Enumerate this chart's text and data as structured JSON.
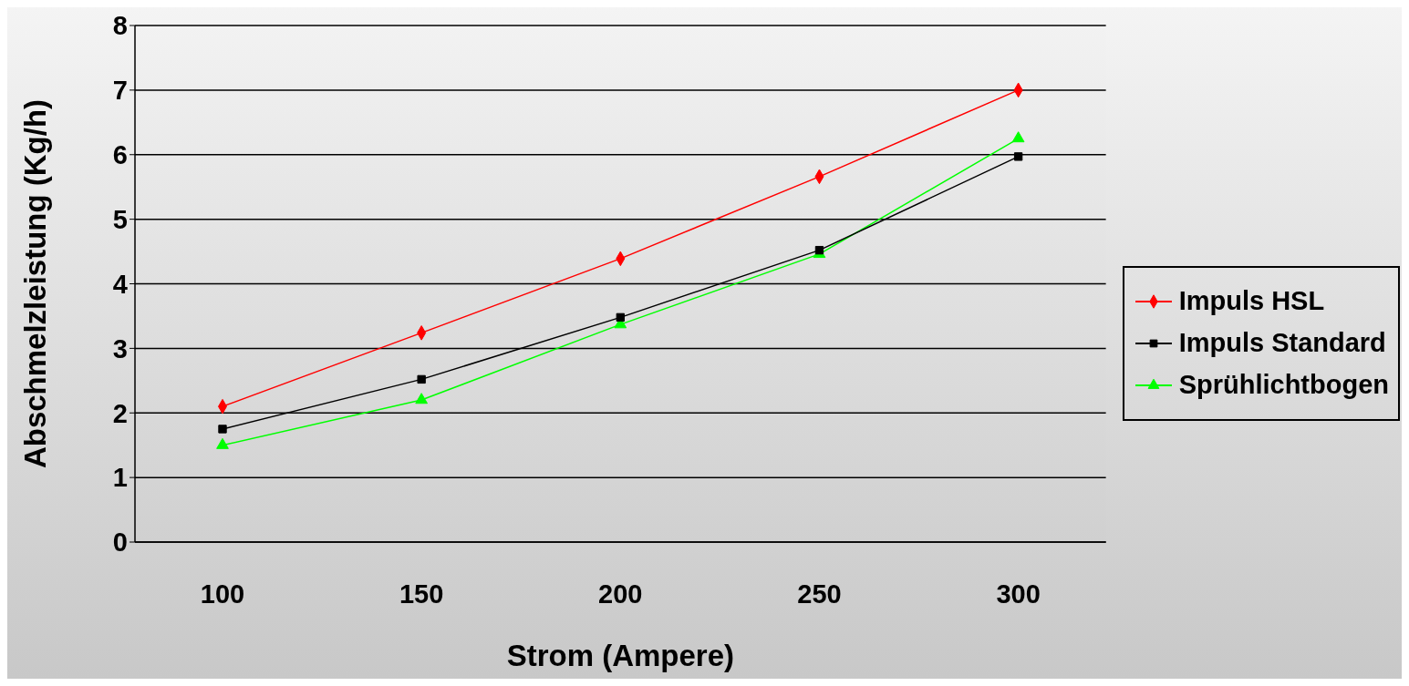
{
  "chart_data": {
    "type": "line",
    "xlabel": "Strom (Ampere)",
    "ylabel": "Abschmelzleistung (Kg/h)",
    "categories": [
      "100",
      "150",
      "200",
      "250",
      "300"
    ],
    "series": [
      {
        "name": "Impuls HSL",
        "color": "#ff0000",
        "marker": "diamond",
        "values": [
          2.1,
          3.24,
          4.39,
          5.66,
          7.0
        ]
      },
      {
        "name": "Impuls Standard",
        "color": "#000000",
        "marker": "square",
        "values": [
          1.75,
          2.52,
          3.48,
          4.52,
          5.97
        ]
      },
      {
        "name": "Sprühlichtbogen",
        "color": "#00ff00",
        "marker": "triangle",
        "values": [
          1.5,
          2.2,
          3.37,
          4.46,
          6.25
        ]
      }
    ],
    "ylim": [
      0,
      8
    ],
    "yticks": [
      0,
      1,
      2,
      3,
      4,
      5,
      6,
      7,
      8
    ],
    "grid": "y",
    "legend": "right",
    "line_style": "solid"
  }
}
